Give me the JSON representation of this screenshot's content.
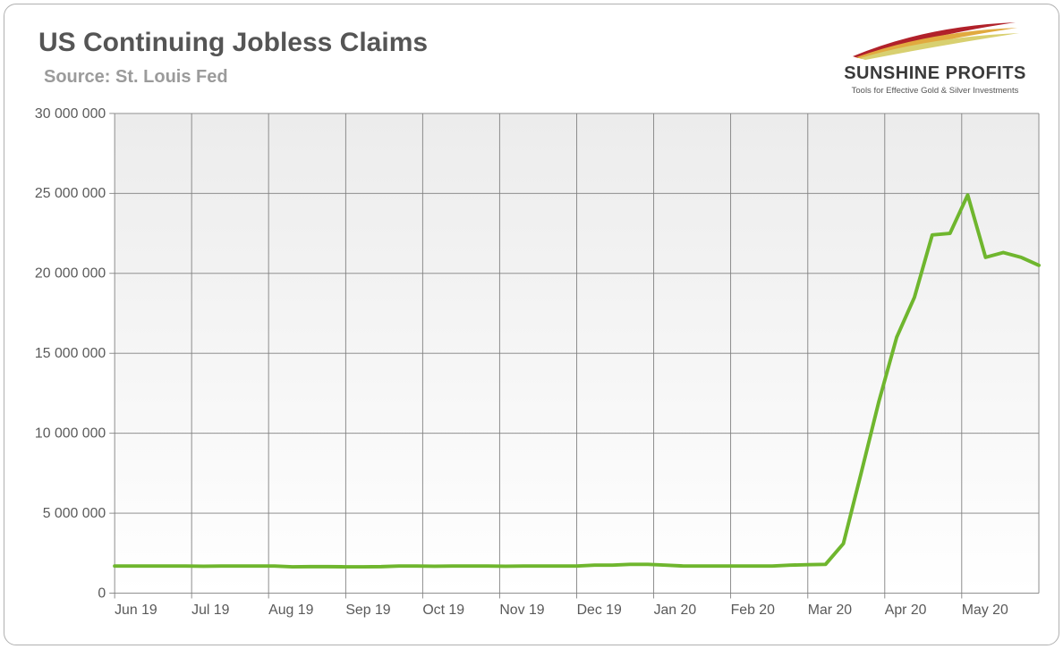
{
  "header": {
    "title": "US Continuing Jobless Claims",
    "subtitle": "Source: St. Louis Fed"
  },
  "logo": {
    "brand": "SUNSHINE PROFITS",
    "tagline": "Tools for Effective Gold & Silver Investments",
    "swoosh_colors": [
      "#b1212a",
      "#e1aa3f",
      "#d8d070"
    ]
  },
  "chart": {
    "type": "line",
    "background_color": "#ffffff",
    "plot_fill_top": "#ececec",
    "plot_fill_bottom": "#ffffff",
    "grid_color": "#808080",
    "grid_width": 0.9,
    "axis_color": "#808080",
    "tick_font_size": 16,
    "tick_color": "#595959",
    "y": {
      "min": 0,
      "max": 30000000,
      "step": 5000000,
      "tick_labels": [
        "0",
        "5 000 000",
        "10 000 000",
        "15 000 000",
        "20 000 000",
        "25 000 000",
        "30 000 000"
      ]
    },
    "x": {
      "min": 0,
      "max": 52,
      "tick_positions": [
        0,
        4.33,
        8.66,
        13,
        17.33,
        21.66,
        26,
        30.33,
        34.66,
        39,
        43.33,
        47.66
      ],
      "tick_labels": [
        "Jun 19",
        "Jul 19",
        "Aug 19",
        "Sep 19",
        "Oct 19",
        "Nov 19",
        "Dec 19",
        "Jan 20",
        "Feb 20",
        "Mar 20",
        "Apr 20",
        "May 20"
      ]
    },
    "series": [
      {
        "name": "continuing-claims",
        "color": "#6fb62e",
        "line_width": 4,
        "points": [
          [
            0,
            1700000
          ],
          [
            1,
            1700000
          ],
          [
            2,
            1700000
          ],
          [
            3,
            1700000
          ],
          [
            4,
            1700000
          ],
          [
            5,
            1680000
          ],
          [
            6,
            1700000
          ],
          [
            7,
            1700000
          ],
          [
            8,
            1700000
          ],
          [
            9,
            1700000
          ],
          [
            10,
            1650000
          ],
          [
            11,
            1660000
          ],
          [
            12,
            1660000
          ],
          [
            13,
            1650000
          ],
          [
            14,
            1650000
          ],
          [
            15,
            1660000
          ],
          [
            16,
            1700000
          ],
          [
            17,
            1700000
          ],
          [
            18,
            1680000
          ],
          [
            19,
            1700000
          ],
          [
            20,
            1700000
          ],
          [
            21,
            1700000
          ],
          [
            22,
            1680000
          ],
          [
            23,
            1700000
          ],
          [
            24,
            1700000
          ],
          [
            25,
            1700000
          ],
          [
            26,
            1700000
          ],
          [
            27,
            1750000
          ],
          [
            28,
            1750000
          ],
          [
            29,
            1800000
          ],
          [
            30,
            1800000
          ],
          [
            31,
            1750000
          ],
          [
            32,
            1700000
          ],
          [
            33,
            1700000
          ],
          [
            34,
            1700000
          ],
          [
            35,
            1700000
          ],
          [
            36,
            1700000
          ],
          [
            37,
            1700000
          ],
          [
            38,
            1750000
          ],
          [
            39,
            1780000
          ],
          [
            40,
            1800000
          ],
          [
            41,
            3100000
          ],
          [
            42,
            7500000
          ],
          [
            43,
            12000000
          ],
          [
            44,
            16000000
          ],
          [
            45,
            18500000
          ],
          [
            46,
            22400000
          ],
          [
            47,
            22500000
          ],
          [
            48,
            24900000
          ],
          [
            49,
            21000000
          ],
          [
            50,
            21300000
          ],
          [
            51,
            21000000
          ],
          [
            52,
            20500000
          ]
        ]
      }
    ]
  }
}
